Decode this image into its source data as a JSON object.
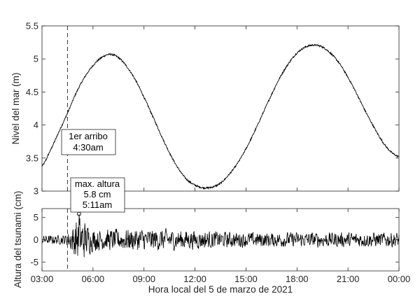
{
  "chart_data": [
    {
      "type": "line",
      "panel": "top",
      "ylabel": "Nivel del mar (m)",
      "ylim": [
        3,
        5.5
      ],
      "yticks": [
        "3",
        "3.5",
        "4",
        "4.5",
        "5",
        "5.5"
      ],
      "xlim_hours": [
        3,
        24
      ],
      "grid": false,
      "series": [
        {
          "x_hours": [
            3,
            3.5,
            4,
            4.5,
            5,
            5.5,
            6,
            6.5,
            7,
            7.5,
            8,
            8.5,
            9,
            9.5,
            10,
            10.5,
            11,
            11.5,
            12,
            12.5,
            13,
            13.5,
            14,
            14.5,
            15,
            15.5,
            16,
            16.5,
            17,
            17.5,
            18,
            18.5,
            19,
            19.5,
            20,
            20.5,
            21,
            21.5,
            22,
            22.5,
            23,
            23.5,
            24
          ],
          "values": [
            3.38,
            3.62,
            3.9,
            4.18,
            4.48,
            4.72,
            4.9,
            5.02,
            5.07,
            5.02,
            4.88,
            4.68,
            4.42,
            4.14,
            3.85,
            3.58,
            3.35,
            3.18,
            3.09,
            3.05,
            3.06,
            3.12,
            3.25,
            3.42,
            3.64,
            3.9,
            4.18,
            4.46,
            4.72,
            4.93,
            5.09,
            5.18,
            5.21,
            5.18,
            5.08,
            4.93,
            4.72,
            4.48,
            4.22,
            3.98,
            3.76,
            3.6,
            3.52
          ]
        }
      ],
      "annotation": {
        "line1": "1er arribo",
        "line2": "4:30am",
        "at_hours": 4.5
      }
    },
    {
      "type": "line",
      "panel": "bottom",
      "ylabel": "Altura del tsunami (cm)",
      "xlabel": "Hora local del 5 de marzo de 2021",
      "ylim": [
        -7,
        7
      ],
      "yticks": [
        "-5",
        "0",
        "5"
      ],
      "xticks": [
        "03:00",
        "06:00",
        "09:00",
        "12:00",
        "15:00",
        "18:00",
        "21:00",
        "00:00"
      ],
      "xlim_hours": [
        3,
        24
      ],
      "grid": false,
      "series": [
        {
          "x_hours": [
            3,
            4.5,
            5.18,
            6,
            9,
            12,
            15,
            18,
            21,
            24
          ],
          "values": [
            0,
            0,
            5.8,
            0,
            0,
            0,
            0,
            0,
            0,
            0
          ],
          "amplitude_envelope": [
            1.5,
            2,
            6,
            3,
            3,
            2.5,
            2,
            2,
            2,
            2
          ]
        }
      ],
      "annotation": {
        "line1": "max. altura",
        "line2": "5.8 cm",
        "line3": "5:11am",
        "at_hours": 5.18,
        "value": 5.8
      }
    }
  ]
}
